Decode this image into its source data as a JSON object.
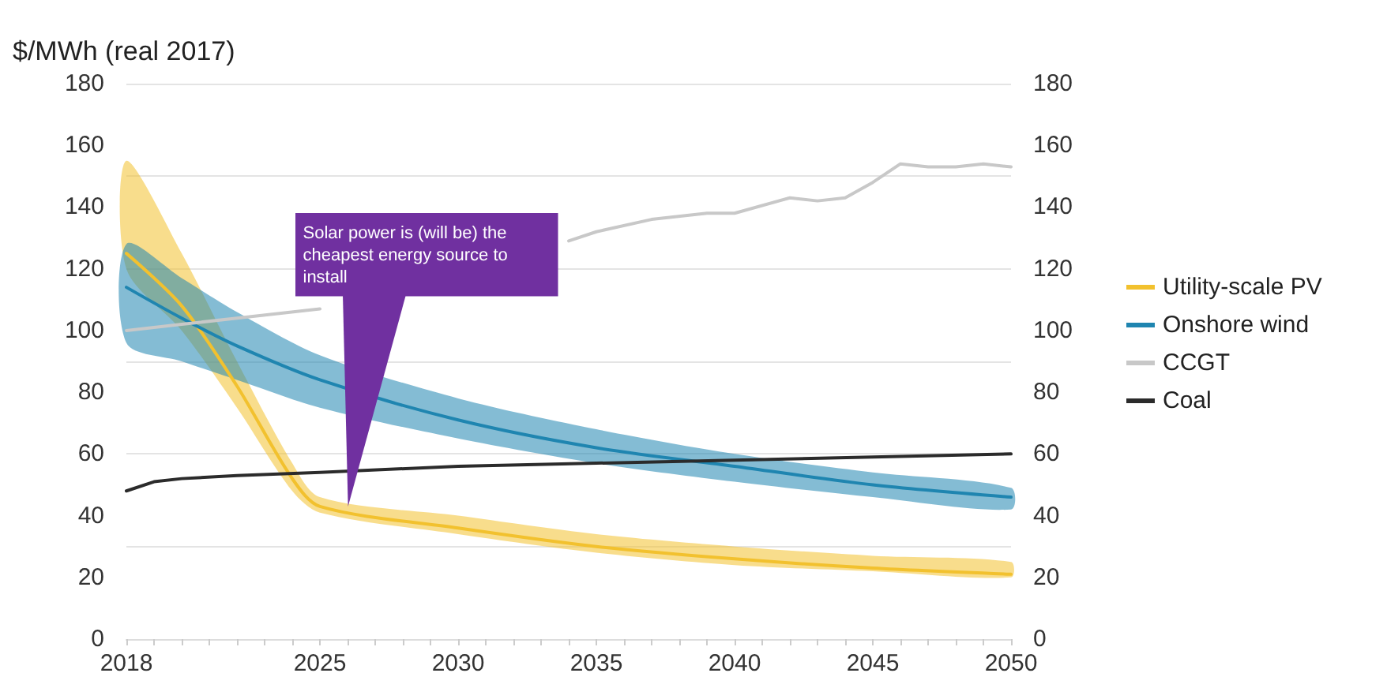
{
  "chart_data": {
    "type": "line",
    "ylabel": "$/MWh (real 2017)",
    "annotations": [
      {
        "text": "Solar power is (will be) the cheapest energy source to install",
        "x": 2026,
        "y": 43
      }
    ],
    "xlim": [
      2018,
      2050
    ],
    "xticks": [
      2018,
      2025,
      2030,
      2035,
      2040,
      2045,
      2050
    ],
    "ylim": [
      0,
      180
    ],
    "yticks": [
      0,
      20,
      40,
      60,
      80,
      100,
      120,
      140,
      160,
      180
    ],
    "y2lim": [
      0,
      180
    ],
    "y2ticks": [
      0,
      20,
      40,
      60,
      80,
      100,
      120,
      140,
      160,
      180
    ],
    "grid": "y",
    "legend": "right",
    "marker": "none",
    "line_style": "solid",
    "series": [
      {
        "name": "Utility-scale PV",
        "color": "#f2c12e",
        "x": [
          2018,
          2020,
          2022,
          2024,
          2025,
          2030,
          2035,
          2040,
          2045,
          2050
        ],
        "values": [
          125,
          108,
          82,
          52,
          43,
          36,
          30,
          26,
          23,
          21
        ],
        "lower": [
          120,
          100,
          75,
          48,
          41,
          34,
          28,
          24,
          22,
          20
        ],
        "upper": [
          155,
          125,
          90,
          57,
          46,
          40,
          34,
          30,
          27,
          25
        ]
      },
      {
        "name": "Onshore wind",
        "color": "#1f85b0",
        "x": [
          2018,
          2020,
          2022,
          2025,
          2030,
          2035,
          2040,
          2045,
          2050
        ],
        "values": [
          114,
          104,
          95,
          84,
          71,
          62,
          56,
          50,
          46
        ],
        "lower": [
          96,
          90,
          84,
          75,
          65,
          57,
          51,
          46,
          42
        ],
        "upper": [
          128,
          117,
          106,
          92,
          78,
          68,
          60,
          54,
          49
        ]
      },
      {
        "name": "CCGT",
        "color": "#c8c8c8",
        "x": [
          2018,
          2020,
          2022,
          2025,
          2028,
          2031,
          2034,
          2035,
          2037,
          2039,
          2040,
          2042,
          2043,
          2044,
          2045,
          2046,
          2047,
          2048,
          2049,
          2050
        ],
        "values": [
          100,
          102,
          104,
          107,
          null,
          null,
          129,
          132,
          136,
          138,
          138,
          143,
          142,
          143,
          148,
          154,
          153,
          153,
          154,
          153
        ]
      },
      {
        "name": "Coal",
        "color": "#2b2b2b",
        "x": [
          2018,
          2019,
          2020,
          2022,
          2025,
          2030,
          2035,
          2040,
          2045,
          2050
        ],
        "values": [
          48,
          51,
          52,
          53,
          54,
          56,
          57,
          58,
          59,
          60
        ]
      }
    ]
  }
}
